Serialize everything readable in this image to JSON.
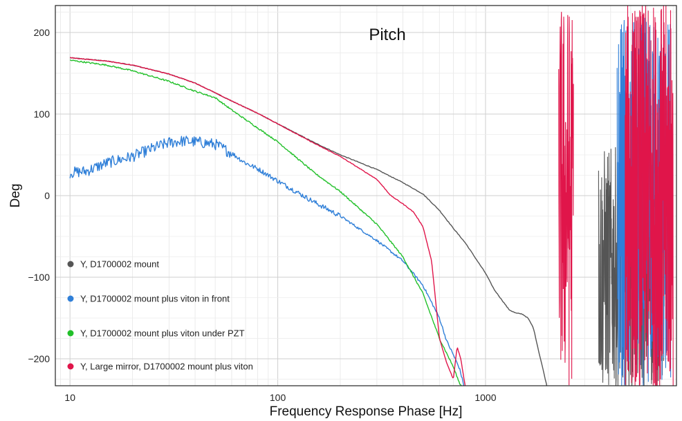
{
  "chart_data": {
    "type": "line",
    "title": "Pitch",
    "xlabel": "Frequency Response Phase [Hz]",
    "ylabel": "Deg",
    "x_scale": "log",
    "xlim": [
      8.5,
      8300
    ],
    "ylim": [
      -233,
      233
    ],
    "x_ticks": [
      10,
      100,
      1000
    ],
    "x_tick_labels": [
      "10",
      "100",
      "1000"
    ],
    "y_ticks": [
      -200,
      -100,
      0,
      100,
      200
    ],
    "y_tick_labels": [
      "−200",
      "−100",
      "0",
      "100",
      "200"
    ],
    "grid": true,
    "legend_position": "bottom-left",
    "series": [
      {
        "name": "Y,  D1700002 mount",
        "color": "#555555",
        "points": [
          [
            10,
            169
          ],
          [
            15,
            165
          ],
          [
            20,
            160
          ],
          [
            30,
            149
          ],
          [
            40,
            138
          ],
          [
            50,
            126
          ],
          [
            60,
            116
          ],
          [
            80,
            101
          ],
          [
            100,
            88
          ],
          [
            150,
            65
          ],
          [
            200,
            50
          ],
          [
            300,
            32
          ],
          [
            400,
            16
          ],
          [
            500,
            2
          ],
          [
            600,
            -18
          ],
          [
            700,
            -40
          ],
          [
            800,
            -58
          ],
          [
            1000,
            -95
          ],
          [
            1100,
            -115
          ],
          [
            1200,
            -128
          ],
          [
            1300,
            -140
          ],
          [
            1400,
            -144
          ],
          [
            1500,
            -145
          ],
          [
            1600,
            -150
          ],
          [
            1700,
            -162
          ],
          [
            1800,
            -190
          ],
          [
            1900,
            -215
          ],
          [
            2000,
            -240
          ]
        ]
      },
      {
        "name": "Y, D1700002 mount plus viton in front",
        "color": "#2f7fd8",
        "points": [
          [
            10,
            28
          ],
          [
            12,
            30
          ],
          [
            15,
            40
          ],
          [
            20,
            48
          ],
          [
            25,
            58
          ],
          [
            30,
            65
          ],
          [
            35,
            67
          ],
          [
            40,
            66
          ],
          [
            50,
            63
          ],
          [
            60,
            52
          ],
          [
            70,
            40
          ],
          [
            80,
            33
          ],
          [
            100,
            18
          ],
          [
            150,
            -8
          ],
          [
            200,
            -25
          ],
          [
            300,
            -55
          ],
          [
            400,
            -80
          ],
          [
            500,
            -110
          ],
          [
            600,
            -150
          ],
          [
            650,
            -178
          ],
          [
            700,
            -195
          ],
          [
            750,
            -212
          ],
          [
            800,
            -240
          ]
        ]
      },
      {
        "name": "Y, D1700002 mount plus viton under PZT",
        "color": "#22c02a",
        "points": [
          [
            10,
            166
          ],
          [
            15,
            160
          ],
          [
            20,
            153
          ],
          [
            30,
            140
          ],
          [
            40,
            128
          ],
          [
            50,
            120
          ],
          [
            60,
            105
          ],
          [
            80,
            83
          ],
          [
            100,
            66
          ],
          [
            150,
            28
          ],
          [
            200,
            5
          ],
          [
            300,
            -35
          ],
          [
            400,
            -75
          ],
          [
            500,
            -120
          ],
          [
            600,
            -175
          ],
          [
            700,
            -210
          ],
          [
            750,
            -230
          ],
          [
            800,
            -240
          ]
        ]
      },
      {
        "name": "Y, Large mirror, D1700002 mount plus viton",
        "color": "#e0154a",
        "points": [
          [
            10,
            169
          ],
          [
            15,
            165
          ],
          [
            20,
            160
          ],
          [
            30,
            149
          ],
          [
            40,
            138
          ],
          [
            50,
            126
          ],
          [
            60,
            116
          ],
          [
            80,
            101
          ],
          [
            100,
            88
          ],
          [
            150,
            64
          ],
          [
            200,
            48
          ],
          [
            300,
            20
          ],
          [
            350,
            0
          ],
          [
            400,
            -10
          ],
          [
            450,
            -20
          ],
          [
            500,
            -38
          ],
          [
            550,
            -80
          ],
          [
            600,
            -175
          ],
          [
            650,
            -205
          ],
          [
            700,
            -225
          ],
          [
            730,
            -185
          ],
          [
            760,
            -200
          ],
          [
            800,
            -235
          ],
          [
            830,
            -240
          ]
        ]
      }
    ]
  }
}
